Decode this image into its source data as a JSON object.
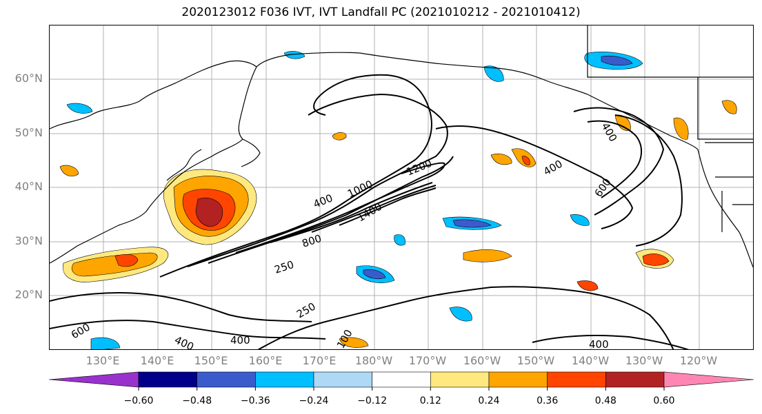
{
  "title": "2020123012 F036 IVT, IVT Landfall PC (2021010212 - 2021010412)",
  "lat_labels": [
    "60°N",
    "50°N",
    "40°N",
    "30°N",
    "20°N"
  ],
  "lon_labels": [
    "130°E",
    "140°E",
    "150°E",
    "160°E",
    "170°E",
    "180°W",
    "170°W",
    "160°W",
    "150°W",
    "140°W",
    "130°W",
    "120°W"
  ],
  "contour_labels": [
    "400",
    "1000",
    "1200",
    "1400",
    "800",
    "250",
    "250",
    "400",
    "400",
    "400",
    "600",
    "600",
    "400",
    "400",
    "100"
  ],
  "colorbar": {
    "ticks": [
      "−0.60",
      "−0.48",
      "−0.36",
      "−0.24",
      "−0.12",
      "0.12",
      "0.24",
      "0.36",
      "0.48",
      "0.60"
    ],
    "colors": [
      "#9932CC",
      "#00008B",
      "#3A5BCC",
      "#00BFFF",
      "#ADD8F6",
      "#FFFFFF",
      "#FFE97F",
      "#FFA500",
      "#FF4500",
      "#B22222",
      "#FF85B3"
    ]
  }
}
